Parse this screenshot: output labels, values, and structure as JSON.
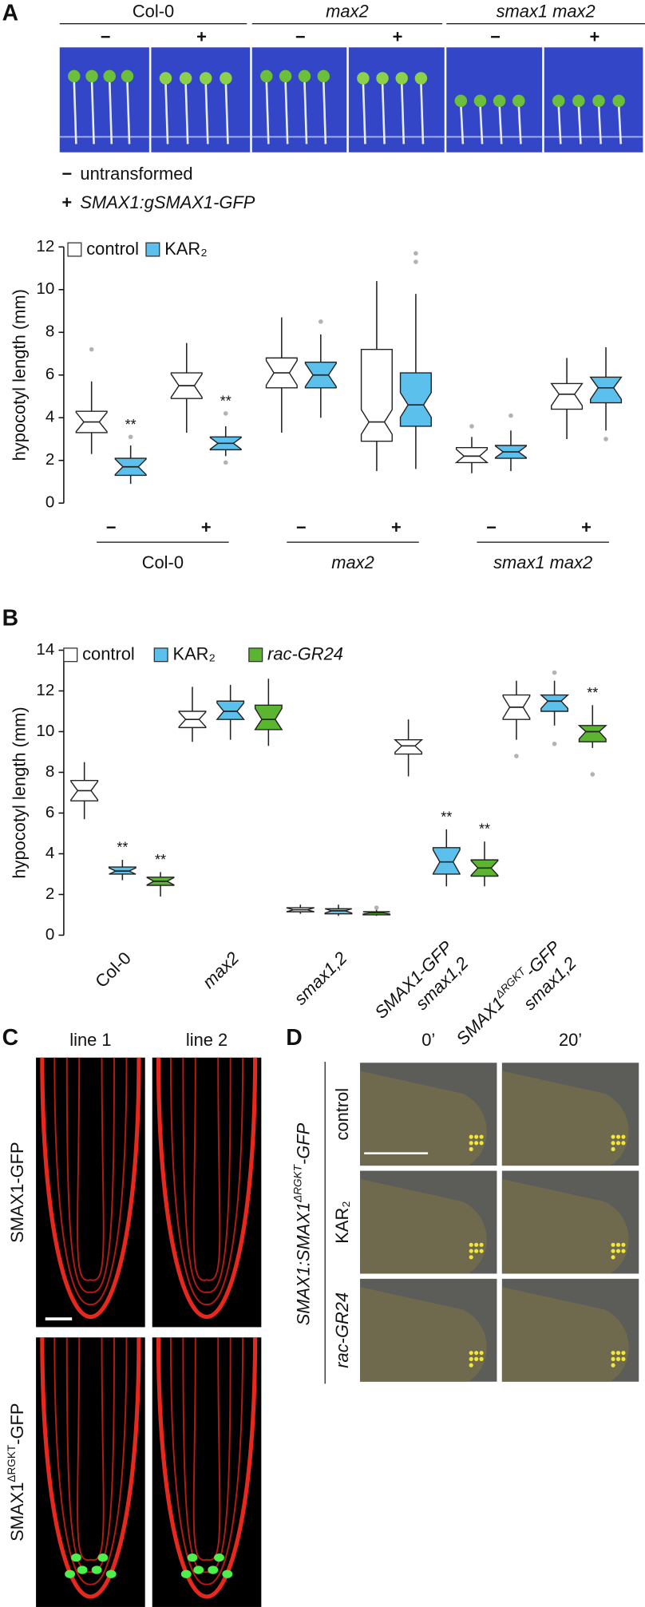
{
  "panel_labels": [
    "A",
    "B",
    "C",
    "D"
  ],
  "panel_a_photo": {
    "groups": [
      "Col-0",
      "max2",
      "smax1 max2"
    ],
    "treatments": [
      "−",
      "+",
      "−",
      "+",
      "−",
      "+"
    ],
    "legend": [
      {
        "symbol": "−",
        "text": "untransformed"
      },
      {
        "symbol": "+",
        "text": "SMAX1:gSMAX1-GFP"
      }
    ]
  },
  "chart_data": [
    {
      "type": "box",
      "ylabel": "hypocotyl length (mm)",
      "ylim": [
        0,
        12
      ],
      "yticks": [
        0,
        2,
        4,
        6,
        8,
        10,
        12
      ],
      "categories": [
        "−",
        "+",
        "−",
        "+",
        "−",
        "+"
      ],
      "groups": [
        "Col-0",
        "max2",
        "smax1 max2"
      ],
      "series": [
        {
          "name": "control",
          "color": "#ffffff",
          "values": [
            {
              "min": 2.3,
              "q1": 3.3,
              "median": 3.8,
              "q3": 4.3,
              "max": 5.7,
              "outliers": [
                7.2
              ]
            },
            {
              "min": 3.3,
              "q1": 4.9,
              "median": 5.5,
              "q3": 6.1,
              "max": 7.5,
              "outliers": []
            },
            {
              "min": 3.3,
              "q1": 5.4,
              "median": 6.1,
              "q3": 6.8,
              "max": 8.7,
              "outliers": []
            },
            {
              "min": 1.5,
              "q1": 2.9,
              "median": 3.8,
              "q3": 7.2,
              "max": 10.4,
              "outliers": []
            },
            {
              "min": 1.4,
              "q1": 1.9,
              "median": 2.2,
              "q3": 2.6,
              "max": 3.1,
              "outliers": [
                3.6
              ]
            },
            {
              "min": 3.0,
              "q1": 4.4,
              "median": 5.1,
              "q3": 5.6,
              "max": 6.8,
              "outliers": []
            }
          ],
          "annotations": [
            null,
            null,
            null,
            null,
            null,
            null
          ]
        },
        {
          "name": "KAR₂",
          "color": "#5bc0eb",
          "values": [
            {
              "min": 0.9,
              "q1": 1.3,
              "median": 1.7,
              "q3": 2.1,
              "max": 2.7,
              "outliers": [
                3.1
              ]
            },
            {
              "min": 2.2,
              "q1": 2.5,
              "median": 2.8,
              "q3": 3.1,
              "max": 3.6,
              "outliers": [
                4.2,
                1.9
              ]
            },
            {
              "min": 4.0,
              "q1": 5.4,
              "median": 6.0,
              "q3": 6.6,
              "max": 7.9,
              "outliers": [
                8.5
              ]
            },
            {
              "min": 1.6,
              "q1": 3.6,
              "median": 4.6,
              "q3": 6.1,
              "max": 9.8,
              "outliers": [
                11.3,
                11.7
              ]
            },
            {
              "min": 1.5,
              "q1": 2.1,
              "median": 2.4,
              "q3": 2.7,
              "max": 3.4,
              "outliers": [
                4.1
              ]
            },
            {
              "min": 3.4,
              "q1": 4.7,
              "median": 5.4,
              "q3": 5.9,
              "max": 7.3,
              "outliers": [
                3.0
              ]
            }
          ],
          "annotations": [
            "**",
            "**",
            null,
            null,
            null,
            null
          ]
        }
      ]
    },
    {
      "type": "box",
      "ylabel": "hypocotyl length (mm)",
      "ylim": [
        0,
        14
      ],
      "yticks": [
        0,
        2,
        4,
        6,
        8,
        10,
        12,
        14
      ],
      "categories": [
        [
          [
            "Col-0"
          ]
        ],
        [
          [
            "max2"
          ]
        ],
        [
          [
            "smax1,2"
          ]
        ],
        [
          [
            "SMAX1-GFP"
          ],
          [
            "smax1,2"
          ]
        ],
        [
          [
            "SMAX1",
            "ΔRGKT",
            "-GFP"
          ],
          [
            "smax1,2"
          ]
        ]
      ],
      "series": [
        {
          "name": "control",
          "color": "#ffffff",
          "values": [
            {
              "min": 5.7,
              "q1": 6.6,
              "median": 7.1,
              "q3": 7.6,
              "max": 8.5,
              "outliers": []
            },
            {
              "min": 9.5,
              "q1": 10.2,
              "median": 10.6,
              "q3": 11.0,
              "max": 12.2,
              "outliers": []
            },
            {
              "min": 1.05,
              "q1": 1.15,
              "median": 1.25,
              "q3": 1.35,
              "max": 1.5,
              "outliers": []
            },
            {
              "min": 7.8,
              "q1": 8.9,
              "median": 9.3,
              "q3": 9.6,
              "max": 10.6,
              "outliers": []
            },
            {
              "min": 9.6,
              "q1": 10.6,
              "median": 11.2,
              "q3": 11.8,
              "max": 12.5,
              "outliers": [
                8.8
              ]
            }
          ],
          "annotations": [
            null,
            null,
            null,
            null,
            null
          ]
        },
        {
          "name": "KAR₂",
          "color": "#5bc0eb",
          "values": [
            {
              "min": 2.7,
              "q1": 3.0,
              "median": 3.15,
              "q3": 3.35,
              "max": 3.7,
              "outliers": []
            },
            {
              "min": 9.6,
              "q1": 10.6,
              "median": 11.0,
              "q3": 11.5,
              "max": 12.3,
              "outliers": []
            },
            {
              "min": 0.95,
              "q1": 1.05,
              "median": 1.2,
              "q3": 1.3,
              "max": 1.5,
              "outliers": []
            },
            {
              "min": 2.4,
              "q1": 3.0,
              "median": 3.6,
              "q3": 4.3,
              "max": 5.2,
              "outliers": []
            },
            {
              "min": 10.3,
              "q1": 11.0,
              "median": 11.5,
              "q3": 11.8,
              "max": 12.5,
              "outliers": [
                12.9,
                9.4
              ]
            }
          ],
          "annotations": [
            "**",
            null,
            null,
            "**",
            null
          ]
        },
        {
          "name": "rac-GR24",
          "color": "#5cb531",
          "values": [
            {
              "min": 1.9,
              "q1": 2.45,
              "median": 2.65,
              "q3": 2.85,
              "max": 3.1,
              "outliers": []
            },
            {
              "min": 9.3,
              "q1": 10.1,
              "median": 10.6,
              "q3": 11.3,
              "max": 12.6,
              "outliers": []
            },
            {
              "min": 0.95,
              "q1": 1.0,
              "median": 1.1,
              "q3": 1.15,
              "max": 1.3,
              "outliers": [
                1.35
              ]
            },
            {
              "min": 2.4,
              "q1": 2.9,
              "median": 3.3,
              "q3": 3.7,
              "max": 4.6,
              "outliers": []
            },
            {
              "min": 9.2,
              "q1": 9.5,
              "median": 10.0,
              "q3": 10.3,
              "max": 11.3,
              "outliers": [
                7.9
              ]
            }
          ],
          "annotations": [
            "**",
            null,
            null,
            "**",
            "**"
          ]
        }
      ]
    }
  ],
  "panel_c": {
    "columns": [
      "line 1",
      "line 2"
    ],
    "rows": [
      [
        "SMAX1-GFP"
      ],
      [
        "SMAX1",
        "ΔRGKT",
        "-GFP"
      ]
    ]
  },
  "panel_d": {
    "columns": [
      "0’",
      "20’"
    ],
    "rows": [
      "control",
      "KAR₂",
      "rac-GR24"
    ],
    "construct": [
      "SMAX1:SMAX1",
      "ΔRGKT",
      "-GFP"
    ]
  }
}
